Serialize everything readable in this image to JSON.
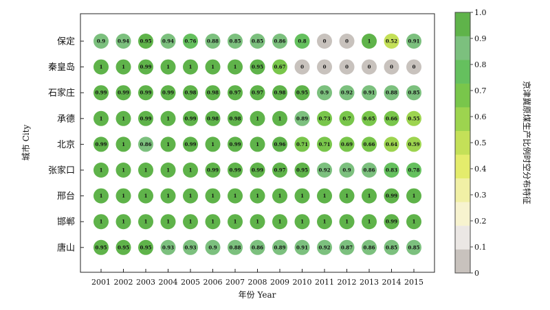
{
  "chart_data": {
    "type": "heatmap",
    "title": "",
    "xlabel": "年份 Year",
    "ylabel": "城市 City",
    "colorbar_label": "京津冀原煤生产比例时空分布特征",
    "x": [
      "2001",
      "2002",
      "2003",
      "2004",
      "2005",
      "2006",
      "2007",
      "2008",
      "2009",
      "2010",
      "2011",
      "2012",
      "2013",
      "2014",
      "2015"
    ],
    "y": [
      "保定",
      "秦皇岛",
      "石家庄",
      "承德",
      "北京",
      "张家口",
      "邢台",
      "邯郸",
      "唐山"
    ],
    "values": [
      [
        "0.9",
        "0.94",
        "0.95",
        "0.94",
        "0.76",
        "0.88",
        "0.85",
        "0.85",
        "0.86",
        "0.8",
        "0",
        "0",
        "1",
        "0.52",
        "0.91"
      ],
      [
        "1",
        "1",
        "0.99",
        "1",
        "1",
        "1",
        "1",
        "0.95",
        "0.67",
        "0",
        "0",
        "0",
        "0",
        "0",
        "0"
      ],
      [
        "0.99",
        "0.99",
        "0.99",
        "0.99",
        "0.98",
        "0.98",
        "0.97",
        "0.97",
        "0.98",
        "0.95",
        "0.9",
        "0.92",
        "0.91",
        "0.88",
        "0.85"
      ],
      [
        "1",
        "1",
        "0.99",
        "1",
        "0.99",
        "0.98",
        "0.98",
        "1",
        "1",
        "0.89",
        "0.73",
        "0.7",
        "0.65",
        "0.66",
        "0.55"
      ],
      [
        "0.99",
        "1",
        "0.86",
        "1",
        "0.99",
        "1",
        "0.99",
        "1",
        "0.96",
        "0.71",
        "0.71",
        "0.69",
        "0.66",
        "0.64",
        "0.59"
      ],
      [
        "1",
        "1",
        "1",
        "1",
        "1",
        "0.99",
        "0.99",
        "0.99",
        "0.97",
        "0.95",
        "0.92",
        "0.9",
        "0.86",
        "0.83",
        "0.78"
      ],
      [
        "1",
        "1",
        "1",
        "1",
        "1",
        "1",
        "1",
        "1",
        "1",
        "1",
        "1",
        "1",
        "1",
        "0.99",
        "1"
      ],
      [
        "1",
        "1",
        "1",
        "1",
        "1",
        "1",
        "1",
        "1",
        "1",
        "1",
        "1",
        "1",
        "1",
        "0.99",
        "1"
      ],
      [
        "0.95",
        "0.95",
        "0.95",
        "0.93",
        "0.93",
        "0.9",
        "0.88",
        "0.86",
        "0.89",
        "0.91",
        "0.92",
        "0.87",
        "0.86",
        "0.85",
        "0.85"
      ]
    ],
    "colorbar": {
      "ticks": [
        "0",
        "0.1",
        "0.2",
        "0.3",
        "0.4",
        "0.5",
        "0.6",
        "0.7",
        "0.8",
        "0.9",
        "1.0"
      ],
      "colors": [
        "#c8c2bd",
        "#ebe7e4",
        "#f7f3cf",
        "#f1f0a5",
        "#e4ec6c",
        "#c4e058",
        "#9dd44f",
        "#79c64b",
        "#65c05e",
        "#7cc07e",
        "#5fb34a"
      ]
    }
  }
}
